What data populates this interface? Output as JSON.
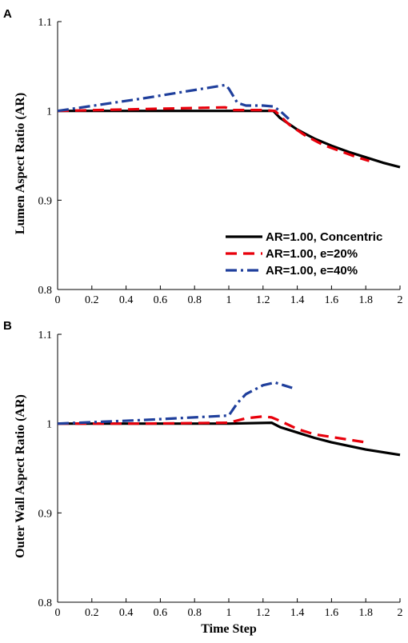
{
  "chart_data": [
    {
      "panel": "A",
      "type": "line",
      "ylabel": "Lumen Aspect Ratio (AR)",
      "xlabel": "",
      "xlim": [
        0,
        2
      ],
      "ylim": [
        0.8,
        1.1
      ],
      "xticks": [
        "0",
        "0.2",
        "0.4",
        "0.6",
        "0.8",
        "1",
        "1.2",
        "1.4",
        "1.6",
        "1.8",
        "2"
      ],
      "yticks": [
        "0.8",
        "0.9",
        "1",
        "1.1"
      ],
      "legend_position": "bottom-right",
      "series": [
        {
          "name": "AR=1.00, Concentric",
          "color": "#000000",
          "style": "solid",
          "points": [
            [
              0,
              1.0
            ],
            [
              1.0,
              1.0
            ],
            [
              1.26,
              1.0
            ],
            [
              1.3,
              0.992
            ],
            [
              1.4,
              0.979
            ],
            [
              1.5,
              0.969
            ],
            [
              1.6,
              0.961
            ],
            [
              1.7,
              0.954
            ],
            [
              1.8,
              0.948
            ],
            [
              1.9,
              0.942
            ],
            [
              2.0,
              0.937
            ]
          ]
        },
        {
          "name": "AR=1.00, e=20%",
          "color": "#e8000b",
          "style": "dashed",
          "points": [
            [
              0,
              1.0
            ],
            [
              0.5,
              1.002
            ],
            [
              0.98,
              1.004
            ],
            [
              1.02,
              1.001
            ],
            [
              1.2,
              1.001
            ],
            [
              1.27,
              1.0
            ],
            [
              1.35,
              0.985
            ],
            [
              1.45,
              0.972
            ],
            [
              1.55,
              0.962
            ],
            [
              1.65,
              0.955
            ],
            [
              1.75,
              0.948
            ],
            [
              1.82,
              0.944
            ]
          ]
        },
        {
          "name": "AR=1.00, e=40%",
          "color": "#1f3f9c",
          "style": "dashdot",
          "points": [
            [
              0,
              1.0
            ],
            [
              0.5,
              1.014
            ],
            [
              0.98,
              1.029
            ],
            [
              1.0,
              1.025
            ],
            [
              1.05,
              1.009
            ],
            [
              1.1,
              1.006
            ],
            [
              1.2,
              1.006
            ],
            [
              1.26,
              1.005
            ],
            [
              1.3,
              1.0
            ],
            [
              1.35,
              0.991
            ]
          ]
        }
      ]
    },
    {
      "panel": "B",
      "type": "line",
      "ylabel": "Outer Wall Aspect Ratio (AR)",
      "xlabel": "Time Step",
      "xlim": [
        0,
        2
      ],
      "ylim": [
        0.8,
        1.1
      ],
      "xticks": [
        "0",
        "0.2",
        "0.4",
        "0.6",
        "0.8",
        "1",
        "1.2",
        "1.4",
        "1.6",
        "1.8",
        "2"
      ],
      "yticks": [
        "0.8",
        "0.9",
        "1",
        "1.1"
      ],
      "series": [
        {
          "name": "AR=1.00, Concentric",
          "color": "#000000",
          "style": "solid",
          "points": [
            [
              0,
              1.0
            ],
            [
              1.0,
              1.0
            ],
            [
              1.25,
              1.001
            ],
            [
              1.3,
              0.996
            ],
            [
              1.4,
              0.99
            ],
            [
              1.5,
              0.984
            ],
            [
              1.6,
              0.979
            ],
            [
              1.7,
              0.975
            ],
            [
              1.8,
              0.971
            ],
            [
              1.9,
              0.968
            ],
            [
              2.0,
              0.965
            ]
          ]
        },
        {
          "name": "AR=1.00, e=20%",
          "color": "#e8000b",
          "style": "dashed",
          "points": [
            [
              0,
              1.0
            ],
            [
              0.5,
              1.0
            ],
            [
              1.0,
              1.001
            ],
            [
              1.1,
              1.006
            ],
            [
              1.2,
              1.008
            ],
            [
              1.25,
              1.007
            ],
            [
              1.3,
              1.003
            ],
            [
              1.4,
              0.994
            ],
            [
              1.5,
              0.988
            ],
            [
              1.6,
              0.985
            ],
            [
              1.7,
              0.982
            ],
            [
              1.8,
              0.979
            ]
          ]
        },
        {
          "name": "AR=1.00, e=40%",
          "color": "#1f3f9c",
          "style": "dashdot",
          "points": [
            [
              0,
              1.0
            ],
            [
              0.5,
              1.004
            ],
            [
              1.0,
              1.009
            ],
            [
              1.05,
              1.023
            ],
            [
              1.1,
              1.033
            ],
            [
              1.2,
              1.043
            ],
            [
              1.27,
              1.046
            ],
            [
              1.32,
              1.043
            ],
            [
              1.37,
              1.04
            ]
          ]
        }
      ]
    }
  ]
}
